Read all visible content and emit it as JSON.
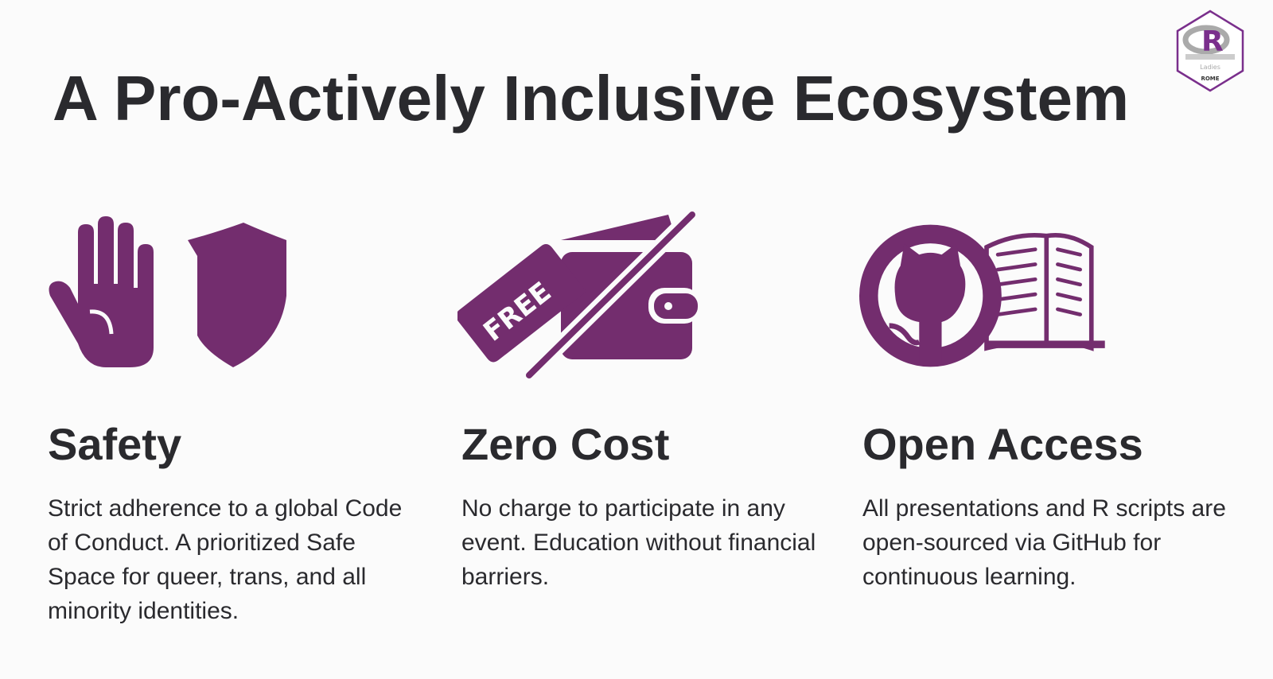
{
  "slide": {
    "title": "A Pro-Actively Inclusive Ecosystem",
    "accent_color": "#732d6e",
    "text_color": "#2a2a2e",
    "logo": {
      "text": "R",
      "sub1": "Ladies",
      "sub2": "ROME"
    }
  },
  "columns": [
    {
      "icon": "hand-shield-icon",
      "heading": "Safety",
      "body": "Strict adherence to a global Code of Conduct. A prioritized Safe Space for queer, trans, and all minority identities."
    },
    {
      "icon": "free-tag-wallet-icon",
      "icon_text": "FREE",
      "heading": "Zero Cost",
      "body": "No charge to participate in any event. Education without financial barriers."
    },
    {
      "icon": "github-book-icon",
      "heading": "Open Access",
      "body": "All presentations and R scripts are open-sourced via GitHub for continuous learning."
    }
  ]
}
